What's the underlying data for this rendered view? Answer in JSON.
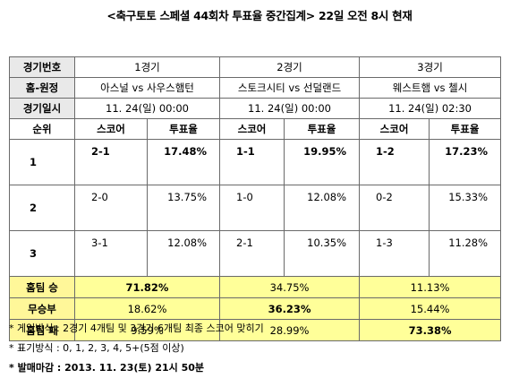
{
  "title": "<축구토토 스페셜 44회차 투표율 중간집계> 22일 오전 8시 현재",
  "labels": {
    "game_no": "경기번호",
    "home_away": "홈-원정",
    "datetime": "경기일시",
    "rank": "순위",
    "score": "스코어",
    "rate": "투표율",
    "home_win": "홈팀 승",
    "draw": "무승부",
    "home_loss": "홈팀 패"
  },
  "games": [
    {
      "no": "1경기",
      "teams": "아스널 vs 사우스햄턴",
      "datetime": "11. 24(일) 00:00"
    },
    {
      "no": "2경기",
      "teams": "스토크시티 vs 선덜랜드",
      "datetime": "11. 24(일) 00:00"
    },
    {
      "no": "3경기",
      "teams": "웨스트햄 vs 첼시",
      "datetime": "11. 24(일) 02:30"
    }
  ],
  "ranks": [
    {
      "rank": "1",
      "cells": [
        {
          "score": "2-1",
          "rate": "17.48%"
        },
        {
          "score": "1-1",
          "rate": "19.95%"
        },
        {
          "score": "1-2",
          "rate": "17.23%"
        }
      ]
    },
    {
      "rank": "2",
      "cells": [
        {
          "score": "2-0",
          "rate": "13.75%"
        },
        {
          "score": "1-0",
          "rate": "12.08%"
        },
        {
          "score": "0-2",
          "rate": "15.33%"
        }
      ]
    },
    {
      "rank": "3",
      "cells": [
        {
          "score": "3-1",
          "rate": "12.08%"
        },
        {
          "score": "2-1",
          "rate": "10.35%"
        },
        {
          "score": "1-3",
          "rate": "11.28%"
        }
      ]
    }
  ],
  "results": {
    "home_win": [
      "71.82%",
      "34.75%",
      "11.13%"
    ],
    "draw": [
      "18.62%",
      "36.23%",
      "15.44%"
    ],
    "home_loss": [
      "9.59%",
      "28.99%",
      "73.38%"
    ]
  },
  "highlight_color": "#ffff99",
  "notes": [
    "* 게임방식 : 2경기 4개팀 및 3경기 6개팀 최종 스코어 맞히기",
    "* 표기방식 : 0, 1, 2, 3, 4, 5+(5점 이상)",
    "* 발매마감 : 2013. 11. 23(토) 21시 50분"
  ]
}
